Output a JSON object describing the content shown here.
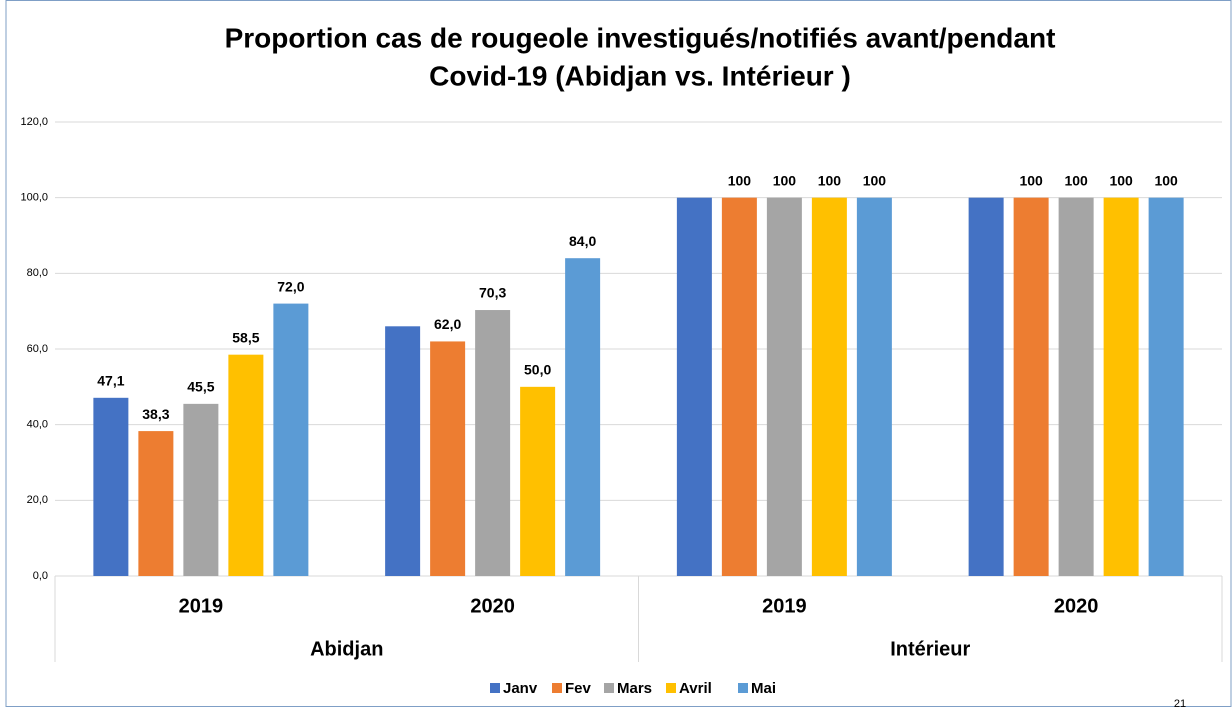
{
  "chart_data": {
    "type": "bar",
    "title": [
      "Proportion cas de rougeole investigués/notifiés avant/pendant",
      "Covid-19 (Abidjan vs. Intérieur )"
    ],
    "categories": [
      "2019",
      "2020",
      "2019",
      "2020"
    ],
    "groups": [
      "Abidjan",
      "Intérieur"
    ],
    "series": [
      {
        "name": "Janv",
        "color": "#4472c4",
        "values": [
          47.1,
          66,
          100,
          100
        ],
        "value_labels": [
          "47,1",
          null,
          null,
          null
        ]
      },
      {
        "name": "Fev",
        "color": "#ed7d31",
        "values": [
          38.3,
          62,
          100,
          100
        ],
        "value_labels": [
          "38,3",
          "62,0",
          "100",
          "100"
        ]
      },
      {
        "name": "Mars",
        "color": "#a5a5a5",
        "values": [
          45.5,
          70.3,
          100,
          100
        ],
        "value_labels": [
          "45,5",
          "70,3",
          "100",
          "100"
        ]
      },
      {
        "name": "Avril",
        "color": "#ffc000",
        "values": [
          58.5,
          50,
          100,
          100
        ],
        "value_labels": [
          "58,5",
          "50,0",
          "100",
          "100"
        ]
      },
      {
        "name": "Mai",
        "color": "#5b9bd5",
        "values": [
          72,
          84,
          100,
          100
        ],
        "value_labels": [
          "72,0",
          "84,0",
          "100",
          "100"
        ]
      }
    ],
    "ylim": [
      0,
      120
    ],
    "yticks": [
      {
        "value": 0,
        "label": "0,0"
      },
      {
        "value": 20,
        "label": "20,0"
      },
      {
        "value": 40,
        "label": "40,0"
      },
      {
        "value": 60,
        "label": "60,0"
      },
      {
        "value": 80,
        "label": "80,0"
      },
      {
        "value": 100,
        "label": "100,0"
      },
      {
        "value": 120,
        "label": "120,0"
      }
    ],
    "grid": true,
    "legend": "bottom",
    "page_number": "21"
  }
}
